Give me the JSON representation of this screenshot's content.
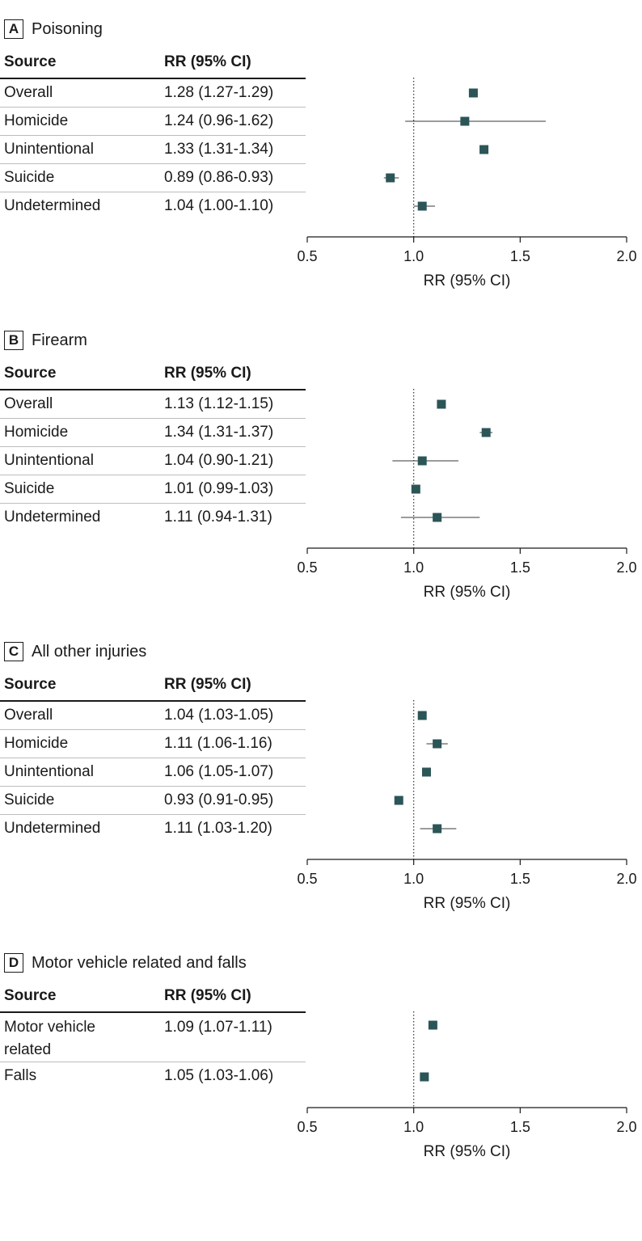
{
  "colors": {
    "marker": "#2b5557",
    "line": "#3a3a3a",
    "axis": "#1a1a1a",
    "ref": "#333333"
  },
  "chart_data": [
    {
      "type": "forest",
      "letter": "A",
      "title": "Poisoning",
      "col_source": "Source",
      "col_rr": "RR (95% CI)",
      "xlabel": "RR (95% CI)",
      "xlim": [
        0.5,
        2.0
      ],
      "ticks": [
        "0.5",
        "1.0",
        "1.5",
        "2.0"
      ],
      "reference": 1.0,
      "rows": [
        {
          "source": "Overall",
          "rr_text": "1.28 (1.27-1.29)",
          "rr": 1.28,
          "lo": 1.27,
          "hi": 1.29
        },
        {
          "source": "Homicide",
          "rr_text": "1.24 (0.96-1.62)",
          "rr": 1.24,
          "lo": 0.96,
          "hi": 1.62
        },
        {
          "source": "Unintentional",
          "rr_text": "1.33 (1.31-1.34)",
          "rr": 1.33,
          "lo": 1.31,
          "hi": 1.34
        },
        {
          "source": "Suicide",
          "rr_text": "0.89 (0.86-0.93)",
          "rr": 0.89,
          "lo": 0.86,
          "hi": 0.93
        },
        {
          "source": "Undetermined",
          "rr_text": "1.04 (1.00-1.10)",
          "rr": 1.04,
          "lo": 1.0,
          "hi": 1.1
        }
      ]
    },
    {
      "type": "forest",
      "letter": "B",
      "title": "Firearm",
      "col_source": "Source",
      "col_rr": "RR (95% CI)",
      "xlabel": "RR (95% CI)",
      "xlim": [
        0.5,
        2.0
      ],
      "ticks": [
        "0.5",
        "1.0",
        "1.5",
        "2.0"
      ],
      "reference": 1.0,
      "rows": [
        {
          "source": "Overall",
          "rr_text": "1.13 (1.12-1.15)",
          "rr": 1.13,
          "lo": 1.12,
          "hi": 1.15
        },
        {
          "source": "Homicide",
          "rr_text": "1.34 (1.31-1.37)",
          "rr": 1.34,
          "lo": 1.31,
          "hi": 1.37
        },
        {
          "source": "Unintentional",
          "rr_text": "1.04 (0.90-1.21)",
          "rr": 1.04,
          "lo": 0.9,
          "hi": 1.21
        },
        {
          "source": "Suicide",
          "rr_text": "1.01 (0.99-1.03)",
          "rr": 1.01,
          "lo": 0.99,
          "hi": 1.03
        },
        {
          "source": "Undetermined",
          "rr_text": "1.11 (0.94-1.31)",
          "rr": 1.11,
          "lo": 0.94,
          "hi": 1.31
        }
      ]
    },
    {
      "type": "forest",
      "letter": "C",
      "title": "All other injuries",
      "col_source": "Source",
      "col_rr": "RR (95% CI)",
      "xlabel": "RR (95% CI)",
      "xlim": [
        0.5,
        2.0
      ],
      "ticks": [
        "0.5",
        "1.0",
        "1.5",
        "2.0"
      ],
      "reference": 1.0,
      "rows": [
        {
          "source": "Overall",
          "rr_text": "1.04 (1.03-1.05)",
          "rr": 1.04,
          "lo": 1.03,
          "hi": 1.05
        },
        {
          "source": "Homicide",
          "rr_text": "1.11 (1.06-1.16)",
          "rr": 1.11,
          "lo": 1.06,
          "hi": 1.16
        },
        {
          "source": "Unintentional",
          "rr_text": "1.06 (1.05-1.07)",
          "rr": 1.06,
          "lo": 1.05,
          "hi": 1.07
        },
        {
          "source": "Suicide",
          "rr_text": "0.93 (0.91-0.95)",
          "rr": 0.93,
          "lo": 0.91,
          "hi": 0.95
        },
        {
          "source": "Undetermined",
          "rr_text": "1.11 (1.03-1.20)",
          "rr": 1.11,
          "lo": 1.03,
          "hi": 1.2
        }
      ]
    },
    {
      "type": "forest",
      "letter": "D",
      "title": "Motor vehicle related and falls",
      "col_source": "Source",
      "col_rr": "RR (95% CI)",
      "xlabel": "RR (95% CI)",
      "xlim": [
        0.5,
        2.0
      ],
      "ticks": [
        "0.5",
        "1.0",
        "1.5",
        "2.0"
      ],
      "reference": 1.0,
      "rows": [
        {
          "source": "Motor vehicle related",
          "rr_text": "1.09 (1.07-1.11)",
          "rr": 1.09,
          "lo": 1.07,
          "hi": 1.11
        },
        {
          "source": "Falls",
          "rr_text": "1.05 (1.03-1.06)",
          "rr": 1.05,
          "lo": 1.03,
          "hi": 1.06
        }
      ]
    }
  ]
}
